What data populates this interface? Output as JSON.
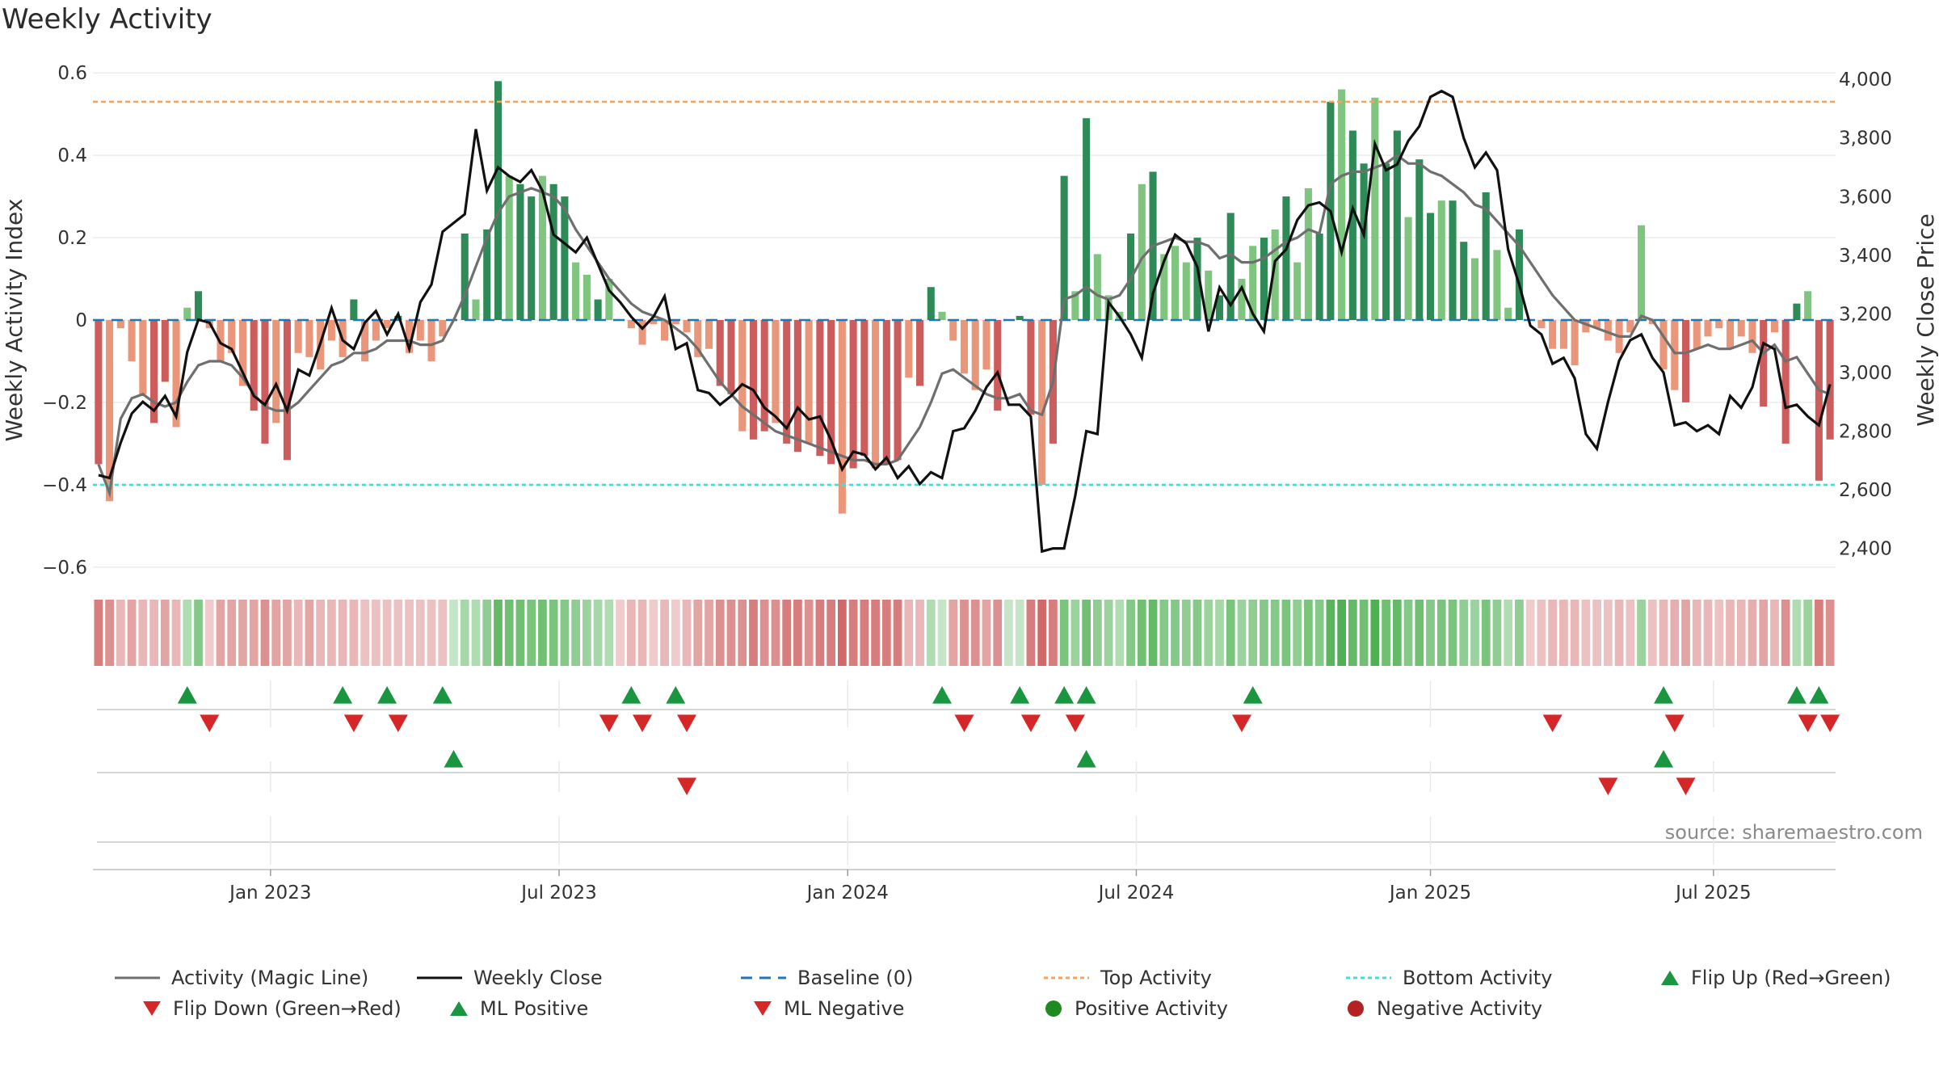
{
  "title": "Weekly Activity",
  "source": "source: sharemaestro.com",
  "colors": {
    "green_dark": "#2e8b57",
    "green_light": "#7fc47f",
    "red_dark": "#cd5c5c",
    "red_light": "#e9967a",
    "magic_line": "#6f6f6f",
    "close_line": "#111111",
    "baseline": "#1f77b4",
    "top_line": "#f4a460",
    "bottom_line": "#40e0d0",
    "flip_up": "#1a9641",
    "flip_down": "#d62728",
    "positive_dot": "#1f8a1f",
    "negative_dot": "#b22222"
  },
  "legend": [
    {
      "label": "Activity (Magic Line)",
      "type": "line",
      "color": "#6f6f6f",
      "style": "solid"
    },
    {
      "label": "Weekly Close",
      "type": "line",
      "color": "#111111",
      "style": "solid"
    },
    {
      "label": "Baseline (0)",
      "type": "line",
      "color": "#1f77b4",
      "style": "dashed"
    },
    {
      "label": "Top Activity",
      "type": "line",
      "color": "#f4a460",
      "style": "dotted"
    },
    {
      "label": "Bottom Activity",
      "type": "line",
      "color": "#40e0d0",
      "style": "dotted"
    },
    {
      "label": "Flip Up (Red→Green)",
      "type": "tri-up",
      "color": "#1a9641"
    },
    {
      "label": "Flip Down (Green→Red)",
      "type": "tri-down",
      "color": "#d62728"
    },
    {
      "label": "ML Positive",
      "type": "tri-up",
      "color": "#1a9641"
    },
    {
      "label": "ML Negative",
      "type": "tri-down",
      "color": "#d62728"
    },
    {
      "label": "Positive Activity",
      "type": "dot",
      "color": "#1f8a1f"
    },
    {
      "label": "Negative Activity",
      "type": "dot",
      "color": "#b22222"
    }
  ],
  "chart_data": {
    "type": "bar",
    "title": "Weekly Activity",
    "ylabel": "Weekly Activity Index",
    "y2label": "Weekly Close Price",
    "ylim": [
      -0.62,
      0.62
    ],
    "y2lim": [
      2308,
      4050
    ],
    "yticks": [
      -0.6,
      -0.4,
      -0.2,
      0,
      0.2,
      0.4,
      0.6
    ],
    "ytick_labels": [
      "−0.6",
      "−0.4",
      "−0.2",
      "0",
      "0.2",
      "0.4",
      "0.6"
    ],
    "y2ticks": [
      2400,
      2600,
      2800,
      3000,
      3200,
      3400,
      3600,
      3800,
      4000
    ],
    "y2tick_labels": [
      "2,400",
      "2,600",
      "2,800",
      "3,000",
      "3,200",
      "3,400",
      "3,600",
      "3,800",
      "4,000"
    ],
    "xlim": [
      0,
      157
    ],
    "xticks": [
      {
        "week": 16,
        "label": "Jan 2023"
      },
      {
        "week": 42,
        "label": "Jul 2023"
      },
      {
        "week": 68,
        "label": "Jan 2024"
      },
      {
        "week": 94,
        "label": "Jul 2024"
      },
      {
        "week": 120.5,
        "label": "Jan 2025"
      },
      {
        "week": 146,
        "label": "Jul 2025"
      }
    ],
    "top_activity": 0.53,
    "bottom_activity": -0.4,
    "baseline": 0,
    "activity": [
      -0.35,
      -0.44,
      -0.02,
      -0.1,
      -0.18,
      -0.25,
      -0.15,
      -0.26,
      0.03,
      0.07,
      -0.02,
      -0.1,
      -0.08,
      -0.16,
      -0.22,
      -0.3,
      -0.25,
      -0.34,
      -0.08,
      -0.09,
      -0.12,
      -0.05,
      -0.09,
      0.05,
      -0.1,
      -0.05,
      -0.02,
      0.01,
      -0.08,
      -0.05,
      -0.1,
      -0.04,
      0.0,
      0.21,
      0.05,
      0.22,
      0.58,
      0.35,
      0.33,
      0.3,
      0.35,
      0.33,
      0.3,
      0.14,
      0.11,
      0.05,
      0.1,
      0.0,
      -0.02,
      -0.06,
      -0.01,
      -0.05,
      -0.01,
      -0.03,
      -0.09,
      -0.07,
      -0.16,
      -0.18,
      -0.27,
      -0.29,
      -0.27,
      -0.25,
      -0.3,
      -0.32,
      -0.3,
      -0.33,
      -0.35,
      -0.47,
      -0.36,
      -0.33,
      -0.36,
      -0.35,
      -0.34,
      -0.14,
      -0.16,
      0.08,
      0.02,
      -0.05,
      -0.13,
      -0.17,
      -0.12,
      -0.22,
      0.0,
      0.01,
      -0.23,
      -0.4,
      -0.3,
      0.35,
      0.07,
      0.49,
      0.16,
      0.06,
      0.02,
      0.21,
      0.33,
      0.36,
      0.16,
      0.18,
      0.14,
      0.2,
      0.12,
      0.06,
      0.26,
      0.1,
      0.18,
      0.2,
      0.22,
      0.3,
      0.14,
      0.32,
      0.21,
      0.53,
      0.56,
      0.46,
      0.38,
      0.54,
      0.38,
      0.46,
      0.25,
      0.39,
      0.26,
      0.29,
      0.29,
      0.19,
      0.15,
      0.31,
      0.17,
      0.03,
      0.22,
      0.0,
      -0.02,
      -0.07,
      -0.07,
      -0.11,
      -0.03,
      -0.02,
      -0.05,
      -0.08,
      -0.03,
      0.23,
      -0.01,
      -0.12,
      -0.17,
      -0.2,
      -0.07,
      -0.04,
      -0.02,
      -0.07,
      -0.04,
      -0.08,
      -0.21,
      -0.03,
      -0.3,
      0.04,
      0.07,
      -0.39,
      -0.29
    ],
    "magic_line": [
      -0.35,
      -0.42,
      -0.24,
      -0.19,
      -0.18,
      -0.2,
      -0.21,
      -0.2,
      -0.15,
      -0.11,
      -0.1,
      -0.1,
      -0.11,
      -0.14,
      -0.18,
      -0.21,
      -0.22,
      -0.22,
      -0.2,
      -0.17,
      -0.14,
      -0.11,
      -0.1,
      -0.08,
      -0.08,
      -0.07,
      -0.05,
      -0.05,
      -0.05,
      -0.06,
      -0.06,
      -0.05,
      0.0,
      0.06,
      0.13,
      0.2,
      0.26,
      0.3,
      0.31,
      0.32,
      0.31,
      0.3,
      0.27,
      0.22,
      0.18,
      0.14,
      0.1,
      0.07,
      0.04,
      0.02,
      0.01,
      0.0,
      -0.02,
      -0.04,
      -0.07,
      -0.11,
      -0.15,
      -0.18,
      -0.21,
      -0.23,
      -0.25,
      -0.27,
      -0.28,
      -0.29,
      -0.3,
      -0.31,
      -0.32,
      -0.33,
      -0.34,
      -0.34,
      -0.35,
      -0.35,
      -0.34,
      -0.3,
      -0.26,
      -0.2,
      -0.13,
      -0.12,
      -0.14,
      -0.16,
      -0.18,
      -0.19,
      -0.19,
      -0.18,
      -0.22,
      -0.23,
      -0.15,
      0.05,
      0.06,
      0.08,
      0.06,
      0.05,
      0.06,
      0.1,
      0.15,
      0.18,
      0.19,
      0.2,
      0.19,
      0.19,
      0.18,
      0.15,
      0.16,
      0.14,
      0.14,
      0.15,
      0.17,
      0.19,
      0.2,
      0.22,
      0.21,
      0.33,
      0.35,
      0.36,
      0.36,
      0.37,
      0.38,
      0.4,
      0.38,
      0.38,
      0.36,
      0.35,
      0.33,
      0.31,
      0.28,
      0.27,
      0.24,
      0.21,
      0.18,
      0.14,
      0.1,
      0.06,
      0.03,
      0.0,
      -0.01,
      -0.02,
      -0.03,
      -0.04,
      -0.04,
      0.01,
      0.0,
      -0.04,
      -0.08,
      -0.08,
      -0.07,
      -0.06,
      -0.07,
      -0.07,
      -0.06,
      -0.05,
      -0.08,
      -0.06,
      -0.1,
      -0.09,
      -0.13,
      -0.17,
      -0.18
    ],
    "weekly_close": [
      2650,
      2640,
      2760,
      2860,
      2900,
      2870,
      2920,
      2850,
      3070,
      3180,
      3170,
      3100,
      3080,
      3000,
      2920,
      2890,
      2960,
      2870,
      3010,
      2990,
      3100,
      3220,
      3110,
      3080,
      3170,
      3210,
      3130,
      3200,
      3080,
      3240,
      3300,
      3480,
      3510,
      3540,
      3830,
      3620,
      3700,
      3670,
      3650,
      3690,
      3620,
      3470,
      3440,
      3410,
      3460,
      3370,
      3280,
      3240,
      3190,
      3150,
      3190,
      3260,
      3080,
      3100,
      2940,
      2930,
      2890,
      2920,
      2960,
      2940,
      2880,
      2850,
      2810,
      2880,
      2840,
      2850,
      2770,
      2670,
      2730,
      2720,
      2670,
      2710,
      2640,
      2680,
      2620,
      2660,
      2640,
      2800,
      2810,
      2870,
      2950,
      3000,
      2890,
      2890,
      2850,
      2390,
      2400,
      2400,
      2580,
      2800,
      2790,
      3240,
      3190,
      3130,
      3050,
      3270,
      3380,
      3470,
      3440,
      3360,
      3140,
      3290,
      3230,
      3290,
      3200,
      3140,
      3380,
      3420,
      3520,
      3570,
      3580,
      3550,
      3410,
      3560,
      3470,
      3780,
      3690,
      3710,
      3790,
      3840,
      3940,
      3960,
      3940,
      3800,
      3700,
      3750,
      3690,
      3420,
      3300,
      3160,
      3130,
      3030,
      3050,
      2980,
      2790,
      2740,
      2900,
      3040,
      3110,
      3130,
      3050,
      3000,
      2820,
      2830,
      2800,
      2820,
      2790,
      2920,
      2880,
      2950,
      3100,
      3080,
      2880,
      2890,
      2850,
      2820,
      2960
    ]
  },
  "color_strip": {
    "values": [
      -0.5,
      -0.4,
      -0.2,
      -0.3,
      -0.2,
      -0.2,
      -0.3,
      -0.2,
      0.2,
      0.4,
      -0.1,
      -0.3,
      -0.3,
      -0.3,
      -0.3,
      -0.4,
      -0.3,
      -0.3,
      -0.2,
      -0.3,
      -0.2,
      -0.2,
      -0.2,
      -0.2,
      -0.15,
      -0.15,
      -0.15,
      -0.15,
      -0.15,
      -0.15,
      -0.15,
      -0.15,
      0.1,
      0.25,
      0.2,
      0.35,
      0.55,
      0.5,
      0.5,
      0.45,
      0.5,
      0.45,
      0.4,
      0.35,
      0.3,
      0.25,
      0.2,
      -0.1,
      -0.2,
      -0.2,
      -0.1,
      -0.2,
      -0.1,
      -0.2,
      -0.3,
      -0.3,
      -0.4,
      -0.4,
      -0.4,
      -0.5,
      -0.4,
      -0.4,
      -0.5,
      -0.5,
      -0.4,
      -0.5,
      -0.5,
      -0.6,
      -0.5,
      -0.5,
      -0.5,
      -0.5,
      -0.5,
      -0.2,
      -0.2,
      0.2,
      0.1,
      -0.3,
      -0.4,
      -0.4,
      -0.3,
      -0.4,
      0.1,
      0.1,
      -0.5,
      -0.6,
      -0.5,
      0.45,
      0.3,
      0.5,
      0.35,
      0.3,
      0.2,
      0.4,
      0.5,
      0.55,
      0.4,
      0.4,
      0.35,
      0.4,
      0.3,
      0.25,
      0.45,
      0.3,
      0.35,
      0.4,
      0.4,
      0.45,
      0.35,
      0.45,
      0.4,
      0.6,
      0.65,
      0.55,
      0.5,
      0.65,
      0.5,
      0.55,
      0.4,
      0.5,
      0.4,
      0.45,
      0.45,
      0.35,
      0.3,
      0.45,
      0.35,
      0.2,
      0.35,
      -0.1,
      -0.15,
      -0.2,
      -0.2,
      -0.2,
      -0.15,
      -0.15,
      -0.15,
      -0.2,
      -0.15,
      0.3,
      -0.15,
      -0.2,
      -0.25,
      -0.3,
      -0.2,
      -0.2,
      -0.15,
      -0.2,
      -0.2,
      -0.25,
      -0.3,
      -0.2,
      -0.4,
      0.2,
      0.3,
      -0.5,
      -0.4
    ]
  },
  "signal_rows": [
    {
      "name": "flips",
      "up": [
        8,
        22,
        26,
        31,
        48,
        52,
        76,
        83,
        87,
        89,
        104,
        141,
        153,
        155
      ],
      "down": [
        10,
        23,
        27,
        46,
        49,
        53,
        78,
        84,
        88,
        103,
        131,
        142,
        154,
        156
      ]
    },
    {
      "name": "ml",
      "up": [
        32,
        89,
        141
      ],
      "down": [
        53,
        136,
        143
      ]
    }
  ]
}
